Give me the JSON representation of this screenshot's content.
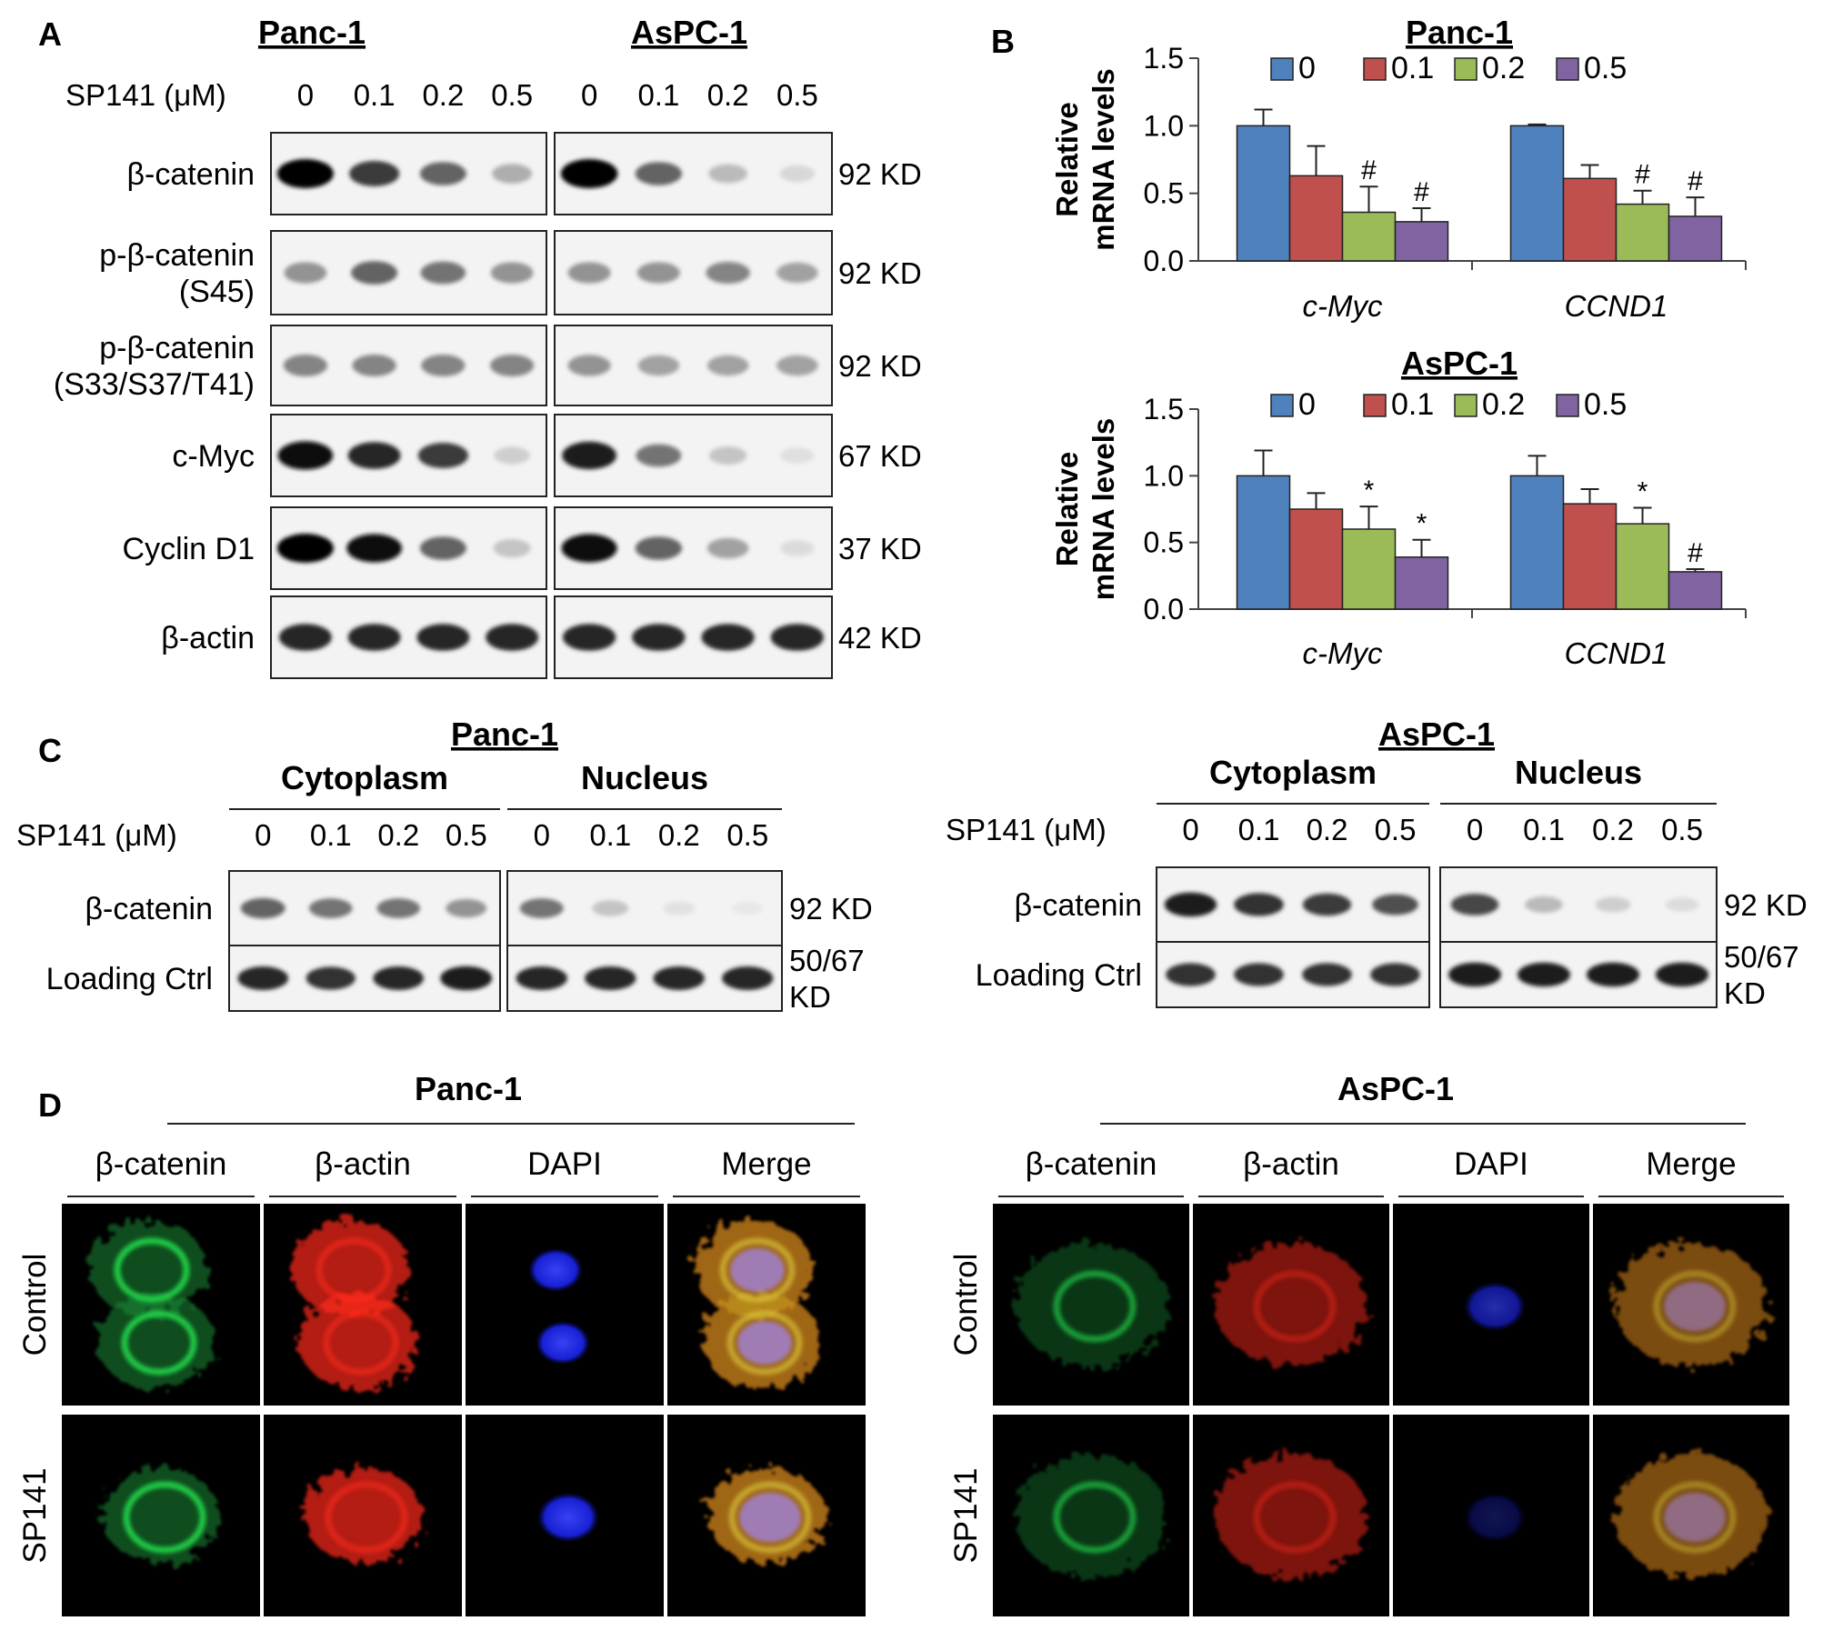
{
  "panels": {
    "A": {
      "label": "A",
      "cell_lines": [
        "Panc-1",
        "AsPC-1"
      ],
      "treatment_label": "SP141 (μM)",
      "doses": [
        "0",
        "0.1",
        "0.2",
        "0.5"
      ],
      "rows": [
        {
          "name": "β-catenin",
          "kd": "92 KD",
          "bands": [
            [
              1.0,
              0.75,
              0.6,
              0.35
            ],
            [
              1.0,
              0.6,
              0.3,
              0.15
            ]
          ]
        },
        {
          "name": "p-β-catenin (S45)",
          "name_lines": [
            "p-β-catenin",
            "(S45)"
          ],
          "kd": "92 KD",
          "bands": [
            [
              0.45,
              0.6,
              0.55,
              0.45
            ],
            [
              0.45,
              0.45,
              0.5,
              0.4
            ]
          ]
        },
        {
          "name": "p-β-catenin (S33/S37/T41)",
          "name_lines": [
            "p-β-catenin",
            "(S33/S37/T41)"
          ],
          "kd": "92 KD",
          "bands": [
            [
              0.5,
              0.5,
              0.5,
              0.5
            ],
            [
              0.45,
              0.4,
              0.4,
              0.4
            ]
          ]
        },
        {
          "name": "c-Myc",
          "kd": "67 KD",
          "bands": [
            [
              0.95,
              0.85,
              0.75,
              0.2
            ],
            [
              0.9,
              0.55,
              0.25,
              0.1
            ]
          ]
        },
        {
          "name": "Cyclin D1",
          "kd": "37 KD",
          "bands": [
            [
              1.0,
              0.95,
              0.6,
              0.25
            ],
            [
              0.95,
              0.6,
              0.4,
              0.12
            ]
          ]
        },
        {
          "name": "β-actin",
          "kd": "42 KD",
          "bands": [
            [
              0.85,
              0.85,
              0.85,
              0.85
            ],
            [
              0.85,
              0.85,
              0.85,
              0.85
            ]
          ]
        }
      ]
    },
    "B": {
      "label": "B",
      "chart_data": [
        {
          "type": "bar",
          "title": "Panc-1",
          "ylabel_lines": [
            "Relative",
            "mRNA levels"
          ],
          "ylim": [
            0,
            1.5
          ],
          "yticks": [
            "0.0",
            "0.5",
            "1.0",
            "1.5"
          ],
          "categories": [
            "c-Myc",
            "CCND1"
          ],
          "legend_position": "top",
          "series": [
            {
              "name": "0",
              "color": "#4f81bd",
              "values": [
                1.0,
                1.0
              ],
              "errors": [
                0.12,
                0.01
              ],
              "marks": [
                "",
                ""
              ]
            },
            {
              "name": "0.1",
              "color": "#c0504d",
              "values": [
                0.63,
                0.61
              ],
              "errors": [
                0.22,
                0.1
              ],
              "marks": [
                "",
                ""
              ]
            },
            {
              "name": "0.2",
              "color": "#9bbb59",
              "values": [
                0.36,
                0.42
              ],
              "errors": [
                0.19,
                0.1
              ],
              "marks": [
                "#",
                "#"
              ]
            },
            {
              "name": "0.5",
              "color": "#8064a2",
              "values": [
                0.29,
                0.33
              ],
              "errors": [
                0.1,
                0.14
              ],
              "marks": [
                "#",
                "#"
              ]
            }
          ]
        },
        {
          "type": "bar",
          "title": "AsPC-1",
          "ylabel_lines": [
            "Relative",
            "mRNA levels"
          ],
          "ylim": [
            0,
            1.5
          ],
          "yticks": [
            "0.0",
            "0.5",
            "1.0",
            "1.5"
          ],
          "categories": [
            "c-Myc",
            "CCND1"
          ],
          "legend_position": "top",
          "series": [
            {
              "name": "0",
              "color": "#4f81bd",
              "values": [
                1.0,
                1.0
              ],
              "errors": [
                0.19,
                0.15
              ],
              "marks": [
                "",
                ""
              ]
            },
            {
              "name": "0.1",
              "color": "#c0504d",
              "values": [
                0.75,
                0.79
              ],
              "errors": [
                0.12,
                0.11
              ],
              "marks": [
                "",
                ""
              ]
            },
            {
              "name": "0.2",
              "color": "#9bbb59",
              "values": [
                0.6,
                0.64
              ],
              "errors": [
                0.17,
                0.12
              ],
              "marks": [
                "*",
                "*"
              ]
            },
            {
              "name": "0.5",
              "color": "#8064a2",
              "values": [
                0.39,
                0.28
              ],
              "errors": [
                0.13,
                0.02
              ],
              "marks": [
                "*",
                "#"
              ]
            }
          ]
        }
      ]
    },
    "C": {
      "label": "C",
      "treatment_label": "SP141 (μM)",
      "doses": [
        "0",
        "0.1",
        "0.2",
        "0.5"
      ],
      "fractions": [
        "Cytoplasm",
        "Nucleus"
      ],
      "blocks": [
        {
          "cell_line": "Panc-1",
          "rows": [
            {
              "name": "β-catenin",
              "kd_lines": [
                "92 KD"
              ],
              "bands": [
                [
                  0.6,
                  0.55,
                  0.55,
                  0.45
                ],
                [
                  0.55,
                  0.25,
                  0.08,
                  0.03
                ]
              ]
            },
            {
              "name": "Loading  Ctrl",
              "kd_lines": [
                "50/67",
                "KD"
              ],
              "bands": [
                [
                  0.85,
                  0.8,
                  0.85,
                  0.9
                ],
                [
                  0.85,
                  0.85,
                  0.85,
                  0.85
                ]
              ]
            }
          ]
        },
        {
          "cell_line": "AsPC-1",
          "rows": [
            {
              "name": "β-catenin",
              "kd_lines": [
                "92 KD"
              ],
              "bands": [
                [
                  0.9,
                  0.8,
                  0.75,
                  0.65
                ],
                [
                  0.7,
                  0.3,
                  0.2,
                  0.12
                ]
              ]
            },
            {
              "name": "Loading  Ctrl",
              "kd_lines": [
                "50/67",
                "KD"
              ],
              "bands": [
                [
                  0.8,
                  0.8,
                  0.8,
                  0.8
                ],
                [
                  0.9,
                  0.9,
                  0.9,
                  0.9
                ]
              ]
            }
          ]
        }
      ]
    },
    "D": {
      "label": "D",
      "channels": [
        "β-catenin",
        "β-actin",
        "DAPI",
        "Merge"
      ],
      "conditions": [
        "Control",
        "SP141"
      ],
      "blocks": [
        {
          "cell_line": "Panc-1"
        },
        {
          "cell_line": "AsPC-1"
        }
      ]
    }
  }
}
